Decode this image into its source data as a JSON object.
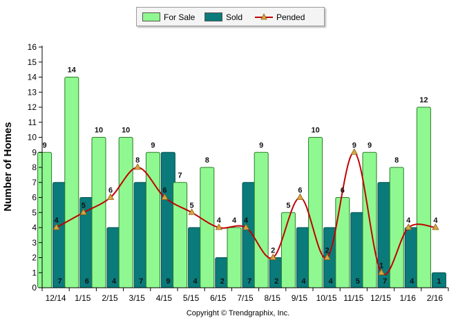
{
  "chart_data": {
    "type": "bar",
    "categories": [
      "12/14",
      "1/15",
      "2/15",
      "3/15",
      "4/15",
      "5/15",
      "6/15",
      "7/15",
      "8/15",
      "9/15",
      "10/15",
      "11/15",
      "12/15",
      "1/16",
      "2/16"
    ],
    "series": [
      {
        "name": "For Sale",
        "type": "bar",
        "color": "#90f890",
        "values": [
          9,
          14,
          10,
          10,
          9,
          7,
          8,
          4,
          9,
          5,
          10,
          6,
          9,
          8,
          12
        ]
      },
      {
        "name": "Sold",
        "type": "bar",
        "color": "#0a7a7a",
        "values": [
          7,
          6,
          4,
          7,
          9,
          4,
          2,
          7,
          2,
          4,
          4,
          5,
          7,
          4,
          1
        ]
      },
      {
        "name": "Pended",
        "type": "line",
        "color": "#c00000",
        "marker_color": "#d9a545",
        "values": [
          4,
          5,
          6,
          8,
          6,
          5,
          4,
          4,
          2,
          6,
          2,
          9,
          1,
          4,
          4
        ]
      }
    ],
    "ylabel": "Number of Homes",
    "ylim": [
      0,
      16
    ],
    "yticks": [
      0,
      1,
      2,
      3,
      4,
      5,
      6,
      7,
      8,
      9,
      10,
      11,
      12,
      13,
      14,
      15,
      16
    ],
    "legend_position": "top-center"
  },
  "legend": {
    "for_sale": "For Sale",
    "sold": "Sold",
    "pended": "Pended"
  },
  "axis": {
    "ylabel": "Number of Homes"
  },
  "footer": {
    "copyright": "Copyright © Trendgraphix, Inc."
  }
}
